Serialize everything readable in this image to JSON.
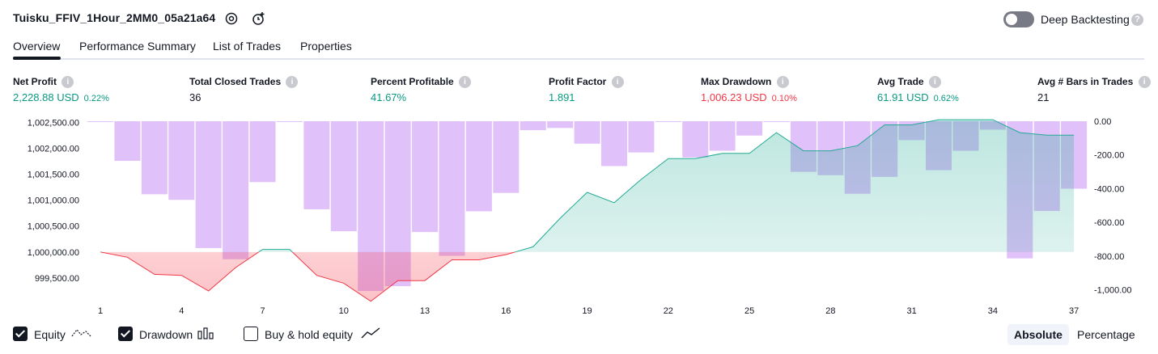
{
  "header": {
    "title": "Tuisku_FFIV_1Hour_2MM0_05a21a64",
    "settings_icon": "settings-icon",
    "alert_icon": "add-alert-icon",
    "deep_backtesting": {
      "label": "Deep Backtesting",
      "enabled": false,
      "help_icon": "help-icon"
    }
  },
  "tabs": [
    {
      "label": "Overview",
      "active": true
    },
    {
      "label": "Performance Summary",
      "active": false
    },
    {
      "label": "List of Trades",
      "active": false
    },
    {
      "label": "Properties",
      "active": false
    }
  ],
  "metrics": [
    {
      "label": "Net Profit",
      "value": "2,228.88 USD",
      "pct": "0.22%",
      "color": "green"
    },
    {
      "label": "Total Closed Trades",
      "value": "36",
      "pct": "",
      "color": "dark"
    },
    {
      "label": "Percent Profitable",
      "value": "41.67%",
      "pct": "",
      "color": "green"
    },
    {
      "label": "Profit Factor",
      "value": "1.891",
      "pct": "",
      "color": "green"
    },
    {
      "label": "Max Drawdown",
      "value": "1,006.23 USD",
      "pct": "0.10%",
      "color": "red"
    },
    {
      "label": "Avg Trade",
      "value": "61.91 USD",
      "pct": "0.62%",
      "color": "green"
    },
    {
      "label": "Avg # Bars in Trades",
      "value": "21",
      "pct": "",
      "color": "dark"
    }
  ],
  "chart_data": {
    "type": "line",
    "x": [
      1,
      2,
      3,
      4,
      5,
      6,
      7,
      8,
      9,
      10,
      11,
      12,
      13,
      14,
      15,
      16,
      17,
      18,
      19,
      20,
      21,
      22,
      23,
      24,
      25,
      26,
      27,
      28,
      29,
      30,
      31,
      32,
      33,
      34,
      35,
      36,
      37
    ],
    "x_ticks": [
      "1",
      "4",
      "7",
      "10",
      "13",
      "16",
      "19",
      "22",
      "25",
      "28",
      "31",
      "34",
      "37"
    ],
    "left_axis": {
      "ticks": [
        "1,002,500.00",
        "1,002,000.00",
        "1,001,500.00",
        "1,001,000.00",
        "1,000,500.00",
        "1,000,000.00",
        "999,500.00"
      ],
      "ylim": [
        999250,
        1002520
      ]
    },
    "right_axis": {
      "ticks": [
        "0.00",
        "-200.00",
        "-400.00",
        "-600.00",
        "-800.00",
        "-1,000.00"
      ],
      "ylim": [
        -1006.23,
        0
      ]
    },
    "series": [
      {
        "name": "Equity",
        "axis": "left",
        "baseline": 1000000,
        "values": [
          1000000,
          999900,
          999570,
          999550,
          999250,
          999700,
          1000050,
          1000050,
          999550,
          999400,
          999050,
          999450,
          999450,
          999850,
          999850,
          999950,
          1000100,
          1000650,
          1001150,
          1000950,
          1001400,
          1001800,
          1001800,
          1001900,
          1001900,
          1002300,
          1001950,
          1001950,
          1002050,
          1002450,
          1002450,
          1002550,
          1002550,
          1002550,
          1002300,
          1002250,
          1002250
        ]
      },
      {
        "name": "Drawdown",
        "axis": "right",
        "values": [
          0,
          -235,
          -433,
          -466,
          -752,
          -818,
          -361,
          -3,
          -522,
          -652,
          -1006,
          -978,
          -657,
          -798,
          -534,
          -425,
          -53,
          -40,
          -133,
          -266,
          -185,
          0,
          -215,
          -175,
          -85,
          0,
          -300,
          -320,
          -430,
          -330,
          -112,
          -290,
          -175,
          -50,
          -813,
          -532,
          -400
        ]
      }
    ],
    "legend": [
      "Equity",
      "Drawdown",
      "Buy & hold equity"
    ]
  },
  "legend": {
    "equity": {
      "label": "Equity",
      "checked": true,
      "icon": "equity-line-icon"
    },
    "drawdown": {
      "label": "Drawdown",
      "checked": true,
      "icon": "drawdown-bars-icon"
    },
    "buy_hold": {
      "label": "Buy & hold equity",
      "checked": false,
      "icon": "buy-hold-line-icon"
    }
  },
  "view_mode": {
    "absolute": "Absolute",
    "percentage": "Percentage",
    "selected": "Absolute"
  },
  "colors": {
    "green": "#089981",
    "red": "#f23645",
    "purple": "#c88ef5",
    "teal": "#22ab94"
  }
}
